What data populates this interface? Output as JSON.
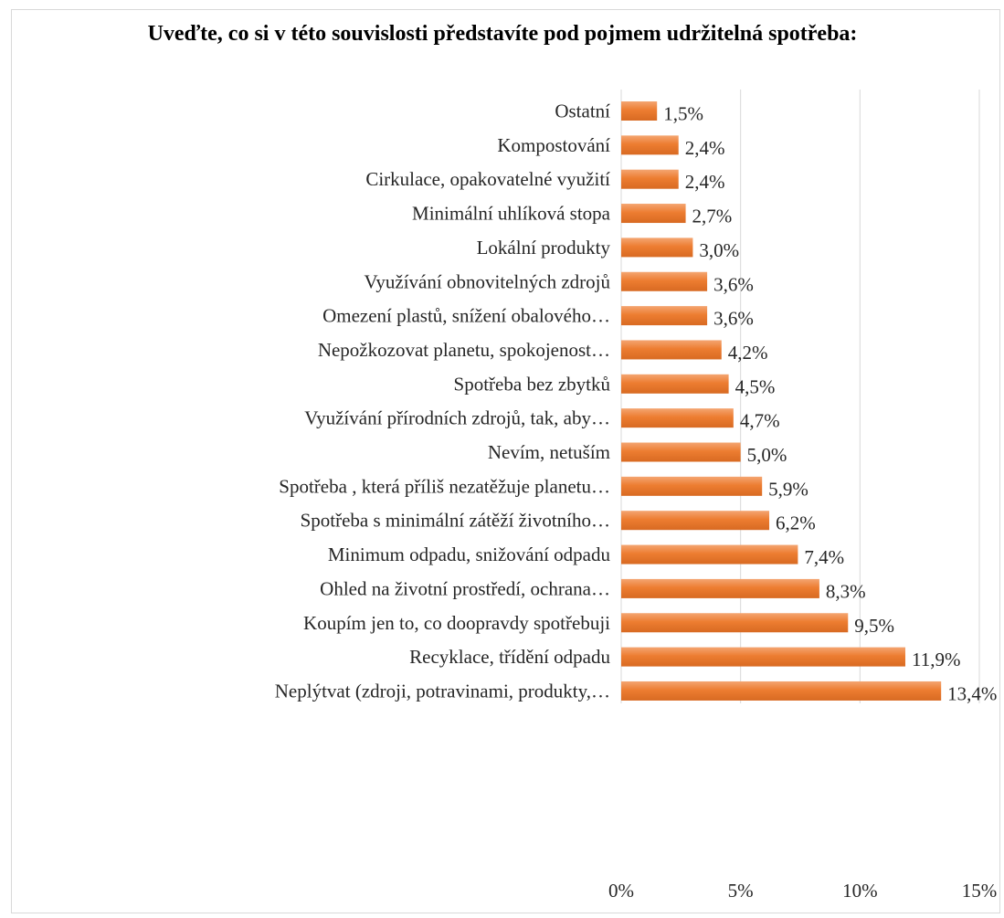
{
  "chart_data": {
    "type": "bar",
    "orientation": "horizontal",
    "title": "Uveďte, co si v této souvislosti představíte pod pojmem udržitelná spotřeba:",
    "xlabel": "",
    "ylabel": "",
    "xlim": [
      0,
      15
    ],
    "x_ticks": [
      0,
      5,
      10,
      15
    ],
    "x_tick_labels": [
      "0%",
      "5%",
      "10%",
      "15%"
    ],
    "grid": "vertical",
    "legend": "none",
    "bar_color": "#ED7D31",
    "categories": [
      "Ostatní",
      "Kompostování",
      "Cirkulace, opakovatelné využití",
      "Minimální uhlíková stopa",
      "Lokální produkty",
      "Využívání obnovitelných zdrojů",
      "Omezení plastů, snížení obalového…",
      "Nepožkozovat planetu, spokojenost…",
      "Spotřeba bez zbytků",
      "Využívání přírodních zdrojů, tak, aby…",
      "Nevím, netuším",
      "Spotřeba , která příliš nezatěžuje planetu…",
      "Spotřeba s minimální zátěží životního…",
      "Minimum odpadu, snižování odpadu",
      "Ohled na životní prostředí, ochrana…",
      "Koupím jen to, co doopravdy spotřebuji",
      "Recyklace, třídění odpadu",
      "Neplýtvat (zdroji, potravinami, produkty,…"
    ],
    "values": [
      1.5,
      2.4,
      2.4,
      2.7,
      3.0,
      3.6,
      3.6,
      4.2,
      4.5,
      4.7,
      5.0,
      5.9,
      6.2,
      7.4,
      8.3,
      9.5,
      11.9,
      13.4
    ],
    "data_labels": [
      "1,5%",
      "2,4%",
      "2,4%",
      "2,7%",
      "3,0%",
      "3,6%",
      "3,6%",
      "4,2%",
      "4,5%",
      "4,7%",
      "5,0%",
      "5,9%",
      "6,2%",
      "7,4%",
      "8,3%",
      "9,5%",
      "11,9%",
      "13,4%"
    ]
  }
}
